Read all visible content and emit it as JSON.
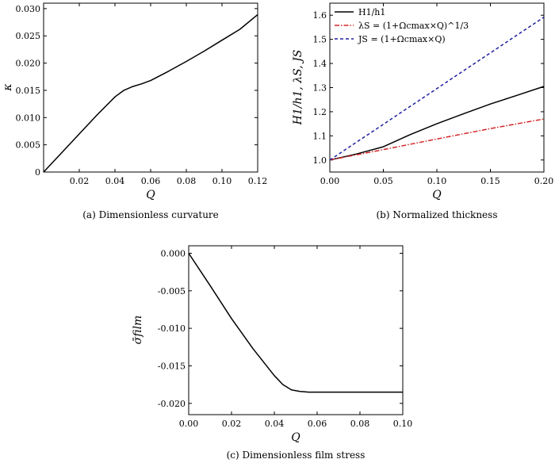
{
  "chart_data": [
    {
      "panel": "a",
      "type": "line",
      "caption": "(a) Dimensionless curvature",
      "xlabel": "Q",
      "ylabel": "κ",
      "xlim": [
        0,
        0.12
      ],
      "ylim": [
        0,
        0.031
      ],
      "xticks": [
        0,
        0.02,
        0.04,
        0.06,
        0.08,
        0.1,
        0.12
      ],
      "xtick_labels": [
        "",
        "0.02",
        "0.04",
        "0.06",
        "0.08",
        "0.10",
        "0.12"
      ],
      "yticks": [
        0,
        0.005,
        0.01,
        0.015,
        0.02,
        0.025,
        0.03
      ],
      "ytick_labels": [
        "0",
        "0.005",
        "0.010",
        "0.015",
        "0.020",
        "0.025",
        "0.030"
      ],
      "series": [
        {
          "color": "#000000",
          "dash": "solid",
          "x": [
            0,
            0.01,
            0.02,
            0.03,
            0.04,
            0.045,
            0.05,
            0.055,
            0.06,
            0.07,
            0.08,
            0.09,
            0.1,
            0.11,
            0.12
          ],
          "y": [
            0,
            0.0035,
            0.007,
            0.0105,
            0.0138,
            0.015,
            0.0157,
            0.0162,
            0.0168,
            0.0185,
            0.0203,
            0.0222,
            0.0242,
            0.0262,
            0.0289
          ]
        }
      ]
    },
    {
      "panel": "b",
      "type": "line",
      "caption": "(b) Normalized thickness",
      "xlabel": "Q",
      "ylabel": "H1/h1, λS, JS",
      "xlim": [
        0,
        0.2
      ],
      "ylim": [
        0.95,
        1.65
      ],
      "xticks": [
        0,
        0.05,
        0.1,
        0.15,
        0.2
      ],
      "xtick_labels": [
        "0.00",
        "0.05",
        "0.10",
        "0.15",
        "0.20"
      ],
      "yticks": [
        1.0,
        1.1,
        1.2,
        1.3,
        1.4,
        1.5,
        1.6
      ],
      "ytick_labels": [
        "1.0",
        "1.1",
        "1.2",
        "1.3",
        "1.4",
        "1.5",
        "1.6"
      ],
      "legend_position": "top-left",
      "series": [
        {
          "name": "H1/h1",
          "color": "#000000",
          "dash": "solid",
          "x": [
            0,
            0.025,
            0.05,
            0.075,
            0.1,
            0.125,
            0.15,
            0.175,
            0.2
          ],
          "y": [
            1.0,
            1.025,
            1.055,
            1.105,
            1.15,
            1.192,
            1.232,
            1.268,
            1.305
          ]
        },
        {
          "name": "λS = (1+Ωcmax×Q)^1/3",
          "color": "#d62728",
          "dash": "dashdot",
          "x": [
            0,
            0.05,
            0.1,
            0.15,
            0.2
          ],
          "y": [
            1.0,
            1.043,
            1.087,
            1.13,
            1.17
          ]
        },
        {
          "name": "JS = (1+Ωcmax×Q)",
          "color": "#1f1f9e",
          "dash": "dashed",
          "x": [
            0,
            0.05,
            0.1,
            0.15,
            0.2
          ],
          "y": [
            1.0,
            1.148,
            1.296,
            1.444,
            1.592
          ]
        }
      ]
    },
    {
      "panel": "c",
      "type": "line",
      "caption": "(c) Dimensionless film stress",
      "xlabel": "Q",
      "ylabel": "σ̄film",
      "xlim": [
        0,
        0.1
      ],
      "ylim": [
        -0.0215,
        0.001
      ],
      "xticks": [
        0,
        0.02,
        0.04,
        0.06,
        0.08,
        0.1
      ],
      "xtick_labels": [
        "0.00",
        "0.02",
        "0.04",
        "0.06",
        "0.08",
        "0.10"
      ],
      "yticks": [
        0,
        -0.005,
        -0.01,
        -0.015,
        -0.02
      ],
      "ytick_labels": [
        "0.000",
        "-0.005",
        "-0.010",
        "-0.015",
        "-0.020"
      ],
      "series": [
        {
          "color": "#000000",
          "dash": "solid",
          "x": [
            0,
            0.01,
            0.02,
            0.03,
            0.04,
            0.044,
            0.048,
            0.052,
            0.056,
            0.06,
            0.08,
            0.1
          ],
          "y": [
            0,
            -0.0043,
            -0.0087,
            -0.0127,
            -0.0163,
            -0.0175,
            -0.0182,
            -0.0184,
            -0.0185,
            -0.0185,
            -0.0185,
            -0.0185
          ]
        }
      ]
    }
  ]
}
